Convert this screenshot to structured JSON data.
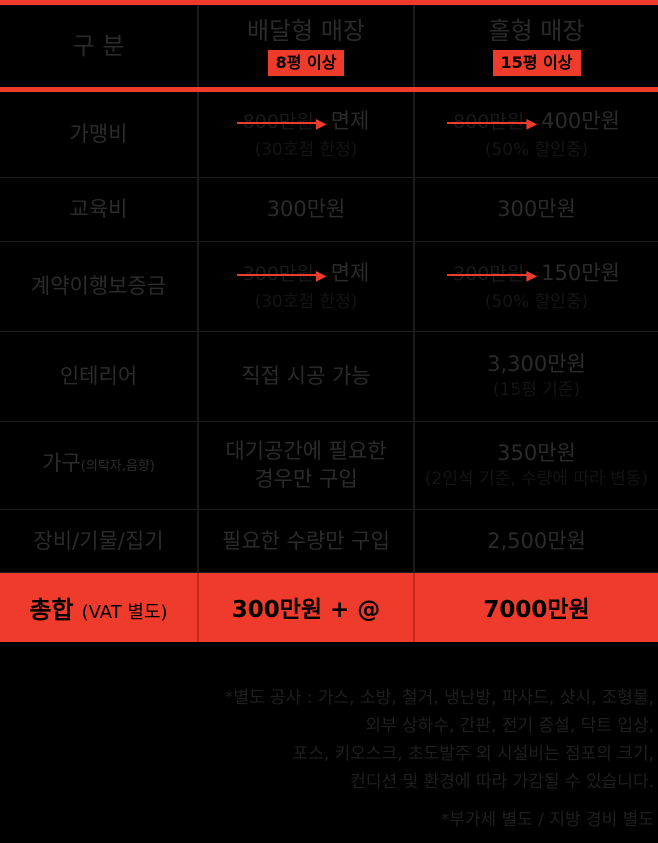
{
  "header": {
    "category": "구 분",
    "delivery_title": "배달형 매장",
    "delivery_badge": "8평 이상",
    "hall_title": "홀형 매장",
    "hall_badge": "15평 이상"
  },
  "rows": [
    {
      "label": "가맹비",
      "delivery": {
        "old": "800만원",
        "new": "면제",
        "note": "(30호점 한정)"
      },
      "hall": {
        "old": "800만원",
        "new": "400만원",
        "note": "(50% 할인중)"
      }
    },
    {
      "label": "교육비",
      "delivery": {
        "value": "300만원"
      },
      "hall": {
        "value": "300만원"
      }
    },
    {
      "label": "계약이행보증금",
      "delivery": {
        "old": "300만원",
        "new": "면제",
        "note": "(30호점 한정)"
      },
      "hall": {
        "old": "300만원",
        "new": "150만원",
        "note": "(50% 할인중)"
      }
    },
    {
      "label": "인테리어",
      "delivery": {
        "value": "직접 시공 가능"
      },
      "hall": {
        "value": "3,300만원",
        "note": "(15평 기준)"
      }
    },
    {
      "label": "가구",
      "label_sub": "(의탁자,음향)",
      "delivery": {
        "line1": "대기공간에 필요한",
        "line2": "경우만 구입"
      },
      "hall": {
        "value": "350만원",
        "note": "(2인석 기준, 수량에 따라 변동)"
      }
    },
    {
      "label": "장비/기물/집기",
      "delivery": {
        "value": "필요한 수량만 구입"
      },
      "hall": {
        "value": "2,500만원"
      }
    }
  ],
  "total": {
    "label": "총합",
    "label_sub": "(VAT 별도)",
    "delivery": "300만원 + @",
    "hall": "7000만원"
  },
  "notes": {
    "line1": "*별도 공사 : 가스, 소방, 철거, 냉난방, 파사드, 샷시, 조형물,",
    "line2": "외부 상하수, 간판, 전기 증설, 닥트 입상,",
    "line3": "포스, 키오스크, 초도발주 외 시설비는 점포의 크기,",
    "line4": "컨디션 및 환경에 따라 가감될 수 있습니다.",
    "line5": "*부가세 별도 / 지방 경비 별도"
  },
  "colors": {
    "accent": "#ef3b2c",
    "background": "#000000",
    "text": "#2b2b2b"
  },
  "icons": {
    "arrow": "right-arrow-icon"
  }
}
